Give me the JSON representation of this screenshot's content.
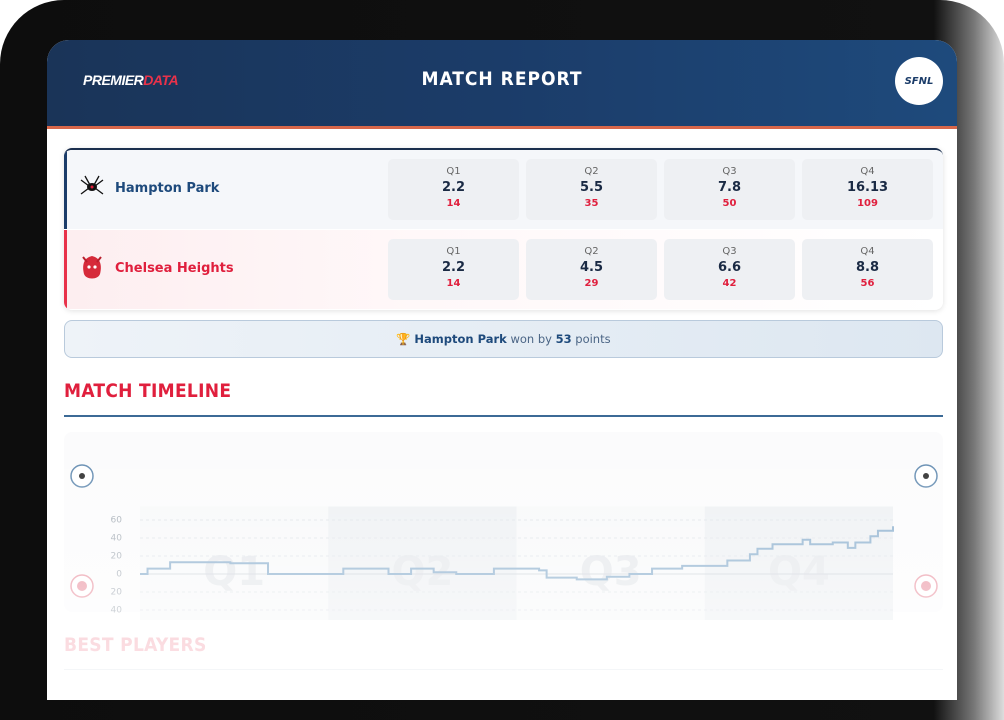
{
  "header": {
    "logo_primary": "PREMIER",
    "logo_accent": "DATA",
    "title": "MATCH REPORT",
    "badge": "SFNL"
  },
  "scores": {
    "teams": [
      {
        "name": "Hampton Park",
        "quarters": [
          "Q1",
          "Q2",
          "Q3",
          "Q4"
        ],
        "goals_behinds": [
          "2.2",
          "5.5",
          "7.8",
          "16.13"
        ],
        "points": [
          14,
          35,
          50,
          109
        ]
      },
      {
        "name": "Chelsea Heights",
        "quarters": [
          "Q1",
          "Q2",
          "Q3",
          "Q4"
        ],
        "goals_behinds": [
          "2.2",
          "4.5",
          "6.6",
          "8.8"
        ],
        "points": [
          14,
          29,
          42,
          56
        ]
      }
    ]
  },
  "result": {
    "winner": "Hampton Park",
    "text_before": "won by",
    "margin": 53,
    "text_after": "points"
  },
  "timeline": {
    "title": "MATCH TIMELINE",
    "chart": {
      "type": "line",
      "step": "post",
      "color": "#7ea6c8",
      "x": [
        0,
        1,
        4,
        12,
        17,
        27,
        33,
        36,
        39,
        42,
        47,
        53,
        54,
        58,
        62,
        65,
        68,
        72,
        78,
        81,
        82,
        84,
        88,
        89,
        92,
        94,
        95,
        97,
        98,
        100
      ],
      "values": [
        0,
        6,
        13,
        12,
        0,
        6,
        0,
        6,
        2,
        0,
        6,
        4,
        -4,
        -6,
        -3,
        0,
        6,
        9,
        15,
        22,
        28,
        33,
        38,
        33,
        35,
        29,
        35,
        42,
        48,
        53
      ],
      "xlim": [
        0,
        100
      ],
      "ylim": [
        -75,
        75
      ],
      "yticks": [
        60,
        40,
        20,
        0,
        {
          "value": -20,
          "label": "20"
        },
        {
          "value": -40,
          "label": "40"
        },
        {
          "value": -60,
          "label": "60"
        }
      ],
      "grid": true,
      "quarters": [
        "Q1",
        "Q2",
        "Q3",
        "Q4"
      ]
    }
  },
  "best_players": {
    "title": "BEST PLAYERS"
  }
}
